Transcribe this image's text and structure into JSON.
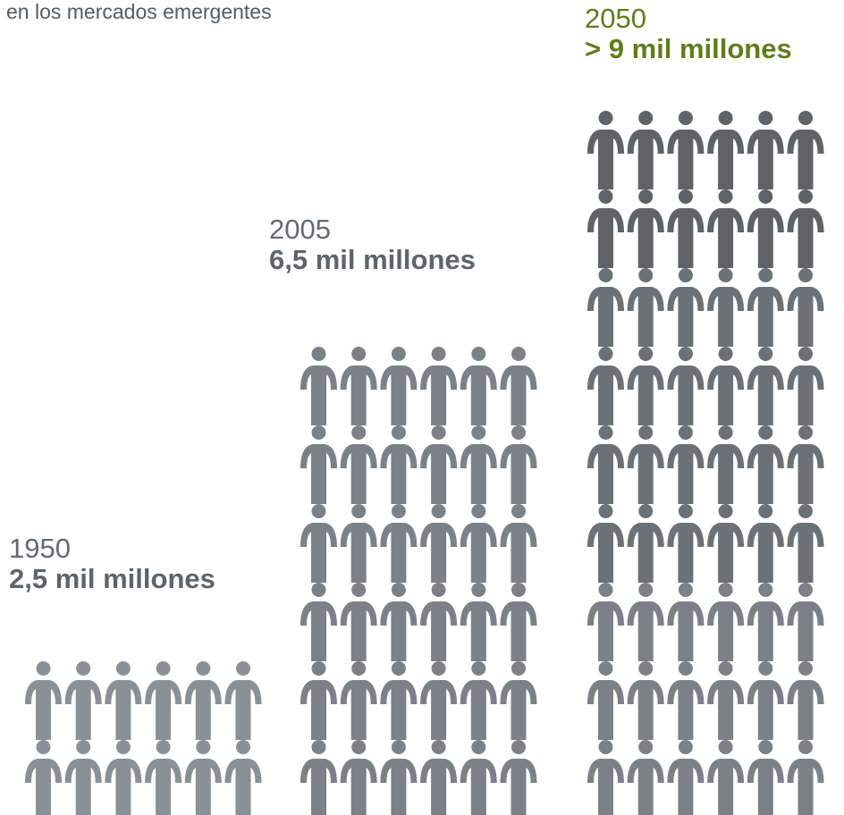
{
  "caption": "en los mercados emergentes",
  "colors": {
    "figure_light": "#8a9196",
    "figure_mid": "#7b8186",
    "figure_dark": "#5f6366",
    "accent": "#5e7d1a",
    "label": "#646a6f"
  },
  "chart_data": {
    "type": "pictogram",
    "unit_icon": "person-icon",
    "figures_per_row": 6,
    "series": [
      {
        "name": "1950",
        "year": "1950",
        "value_label": "2,5 mil millones",
        "rows": 2,
        "highlight": false
      },
      {
        "name": "2005",
        "year": "2005",
        "value_label": "6,5 mil millones",
        "rows": 6,
        "highlight": false
      },
      {
        "name": "2050",
        "year": "2050",
        "value_label": "> 9 mil millones",
        "rows": 9,
        "highlight": true
      }
    ]
  }
}
